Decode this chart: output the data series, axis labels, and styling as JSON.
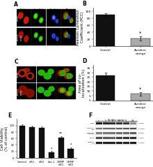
{
  "panel_B": {
    "categories": [
      "Control",
      "Acridine\norange"
    ],
    "values": [
      90,
      22
    ],
    "errors": [
      4,
      6
    ],
    "colors": [
      "#111111",
      "#aaaaaa"
    ],
    "ylabel": "Pearson Correlation\nCoefficient (PCC)",
    "ylim": [
      0,
      110
    ],
    "yticks": [
      0,
      20,
      40,
      60,
      80,
      100
    ]
  },
  "panel_D": {
    "categories": [
      "Control",
      "Acridine\norange"
    ],
    "values": [
      27,
      7
    ],
    "errors": [
      3,
      2
    ],
    "colors": [
      "#111111",
      "#aaaaaa"
    ],
    "ylabel": "Area of co-\nlocalization (%)",
    "ylim": [
      0,
      38
    ],
    "yticks": [
      0,
      5,
      10,
      15,
      20,
      25,
      30,
      35
    ]
  },
  "panel_E": {
    "categories": [
      "Control",
      "siR1",
      "siR2",
      "has-1",
      "CHMP\nsiR1",
      "CHMP\nsiR2"
    ],
    "values": [
      100,
      95,
      93,
      18,
      62,
      28
    ],
    "errors": [
      4,
      4,
      4,
      3,
      5,
      4
    ],
    "colors": [
      "#111111",
      "#111111",
      "#111111",
      "#111111",
      "#111111",
      "#111111"
    ],
    "ylabel": "Cell Viability\n(% of control)",
    "ylim": [
      0,
      120
    ],
    "yticks": [
      0,
      20,
      40,
      60,
      80,
      100
    ],
    "stars": [
      "",
      "",
      "",
      "*",
      "**",
      "*"
    ]
  },
  "background_color": "#ffffff",
  "label_fontsize": 3.8,
  "tick_fontsize": 3.2,
  "panel_label_fontsize": 5.5
}
